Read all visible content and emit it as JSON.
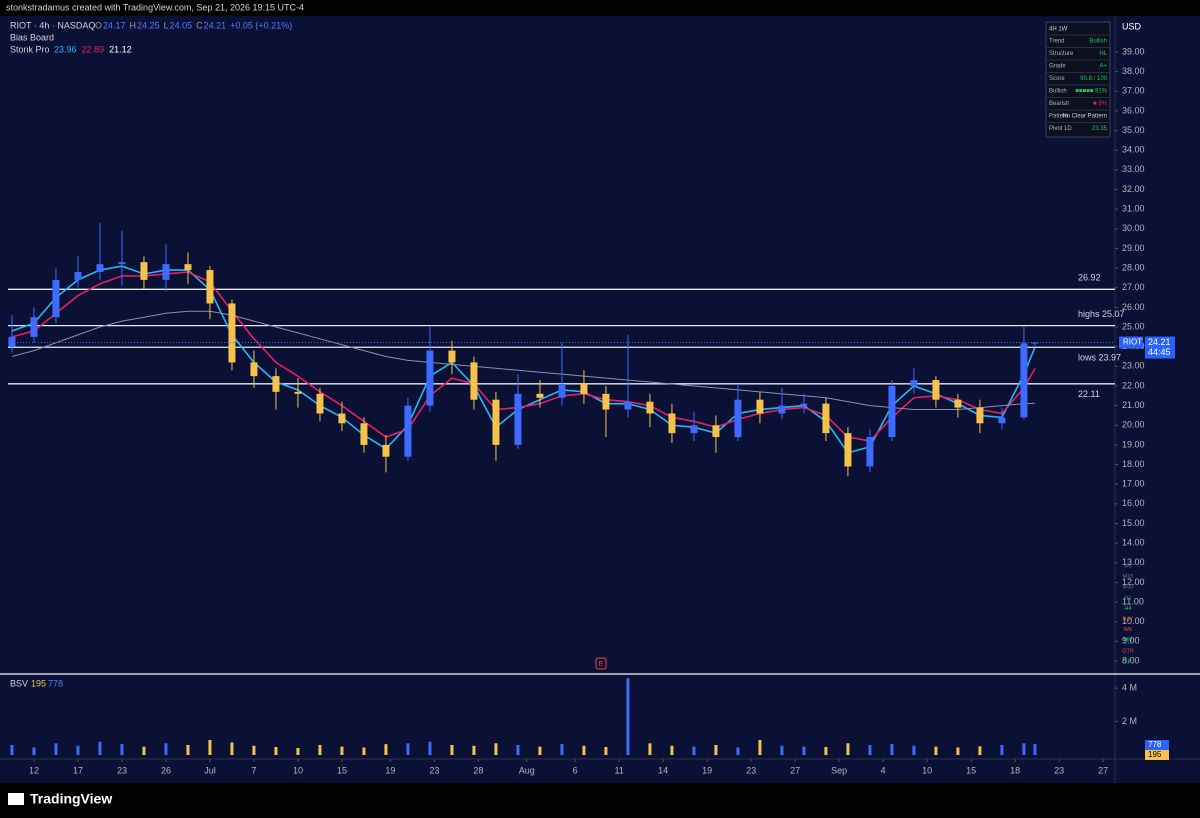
{
  "header": {
    "credit": "stonkstradamus created with TradingView.com, Sep 21, 2026 19:15 UTC-4",
    "symbol_line": "RIOT · 4h · NASDAQ",
    "ohlc_labels": [
      "O",
      "H",
      "L",
      "C"
    ],
    "change_label": "+0.05 (+0.21%)",
    "indicator_1": "Bias Board",
    "indicator_2": "Stonk Pro",
    "currency": "USD"
  },
  "bias_board": {
    "header": "4H  1W",
    "rows": [
      [
        "Trend",
        "Bullish"
      ],
      [
        "Structure",
        "HL"
      ],
      [
        "Grade",
        "A+"
      ],
      [
        "Score",
        "90.8 / 100"
      ],
      [
        "Bullish",
        "■■■■■ 91%"
      ],
      [
        "Bearish",
        "■ 9%"
      ],
      [
        "Pattern",
        "No Clear Pattern"
      ],
      [
        "Pivot 1D",
        "23.35"
      ]
    ]
  },
  "timeframes": [
    {
      "label": "M5",
      "color": "#6b7280"
    },
    {
      "label": "M15",
      "color": "#6b7280"
    },
    {
      "label": "M30",
      "color": "#6b7280"
    },
    {
      "label": "H1",
      "color": "#6b7280"
    },
    {
      "label": "H4",
      "color": "#22c55e"
    },
    {
      "label": "DAY",
      "color": "#ef4444"
    },
    {
      "label": "WK",
      "color": "#ef4444"
    },
    {
      "label": "MN",
      "color": "#22c55e"
    },
    {
      "label": "QTR",
      "color": "#ef4444"
    },
    {
      "label": "YR",
      "color": "#22c55e"
    }
  ],
  "earnings_marker": "E",
  "footer": {
    "brand": "TradingView"
  },
  "chart_data": [
    {
      "type": "candlestick",
      "symbol": "RIOT",
      "countdown": "44:45",
      "up_color": "#3d6bff",
      "down_color": "#f5c24a",
      "x": [
        -0.5,
        0,
        0.5,
        1,
        1.5,
        2,
        2.5,
        3,
        3.5,
        4,
        4.5,
        5,
        5.5,
        6,
        6.5,
        7,
        7.5,
        8,
        8.5,
        9,
        9.5,
        10,
        10.5,
        11,
        11.5,
        12,
        12.5,
        13,
        13.5,
        14,
        14.5,
        15,
        15.5,
        16,
        16.5,
        17,
        17.5,
        18,
        18.5,
        19,
        19.5,
        20,
        20.5,
        21,
        21.5,
        22,
        22.5,
        22.75
      ],
      "open": [
        24.0,
        24.5,
        25.5,
        27.4,
        27.8,
        28.2,
        28.3,
        27.4,
        28.2,
        27.9,
        26.2,
        23.2,
        22.5,
        21.7,
        21.6,
        20.6,
        20.1,
        19.0,
        18.4,
        21.0,
        23.8,
        23.2,
        21.3,
        19.0,
        21.6,
        21.4,
        22.1,
        21.6,
        20.8,
        21.2,
        20.6,
        19.6,
        20.0,
        19.4,
        21.3,
        20.6,
        21.0,
        21.1,
        19.6,
        17.9,
        19.4,
        22.0,
        22.3,
        21.3,
        20.9,
        20.1,
        20.4,
        24.17
      ],
      "high": [
        25.6,
        26.0,
        28.0,
        28.6,
        30.3,
        29.9,
        28.6,
        29.2,
        28.8,
        28.1,
        26.4,
        23.8,
        22.9,
        22.4,
        21.9,
        21.2,
        20.4,
        19.5,
        21.4,
        25.0,
        24.3,
        23.5,
        21.7,
        22.6,
        22.3,
        24.2,
        22.8,
        22.0,
        24.6,
        21.6,
        21.1,
        20.7,
        20.5,
        22.1,
        21.7,
        21.9,
        21.6,
        21.4,
        19.9,
        19.8,
        22.3,
        22.9,
        22.5,
        21.6,
        21.3,
        20.9,
        25.0,
        24.25
      ],
      "low": [
        23.7,
        24.2,
        25.2,
        27.0,
        27.4,
        27.1,
        26.9,
        26.8,
        27.2,
        25.4,
        22.8,
        21.9,
        20.8,
        20.9,
        20.2,
        19.7,
        18.6,
        17.6,
        18.2,
        20.7,
        22.6,
        20.8,
        18.2,
        18.8,
        20.9,
        21.0,
        21.1,
        19.4,
        20.4,
        19.9,
        19.1,
        19.2,
        18.6,
        19.2,
        20.1,
        20.3,
        20.6,
        19.2,
        17.4,
        17.6,
        19.2,
        21.6,
        20.9,
        20.4,
        19.6,
        19.8,
        20.3,
        24.05
      ],
      "close": [
        24.5,
        25.5,
        27.4,
        27.8,
        28.2,
        28.3,
        27.4,
        28.2,
        27.9,
        26.2,
        23.2,
        22.5,
        21.7,
        21.6,
        20.6,
        20.1,
        19.0,
        18.4,
        21.0,
        23.8,
        23.2,
        21.3,
        19.0,
        21.6,
        21.4,
        22.1,
        21.6,
        20.8,
        21.2,
        20.6,
        19.6,
        20.0,
        19.4,
        21.3,
        20.6,
        21.0,
        21.1,
        19.6,
        17.9,
        19.4,
        22.0,
        22.3,
        21.3,
        20.9,
        20.1,
        20.4,
        24.17,
        24.21
      ],
      "series": [
        {
          "color": "#29b6f6",
          "values": [
            24.8,
            25.2,
            26.5,
            27.4,
            27.9,
            28.1,
            27.7,
            27.9,
            27.9,
            26.9,
            24.6,
            23.2,
            22.2,
            21.8,
            21.0,
            20.4,
            19.5,
            18.8,
            20.0,
            22.5,
            23.2,
            22.0,
            19.9,
            20.8,
            21.3,
            21.8,
            21.7,
            21.1,
            21.1,
            20.8,
            20.0,
            19.9,
            19.6,
            20.6,
            20.8,
            20.9,
            21.0,
            20.2,
            18.6,
            18.9,
            21.0,
            22.0,
            21.6,
            21.1,
            20.5,
            20.4,
            22.6,
            23.96
          ]
        },
        {
          "color": "#e91e63",
          "values": [
            24.5,
            24.8,
            25.7,
            26.6,
            27.2,
            27.6,
            27.6,
            27.7,
            27.8,
            27.3,
            25.8,
            24.4,
            23.2,
            22.5,
            21.7,
            21.0,
            20.2,
            19.4,
            19.8,
            21.5,
            22.4,
            22.1,
            20.8,
            20.9,
            21.1,
            21.5,
            21.6,
            21.3,
            21.2,
            21.0,
            20.4,
            20.2,
            19.9,
            20.3,
            20.6,
            20.8,
            20.9,
            20.5,
            19.4,
            19.2,
            20.4,
            21.4,
            21.5,
            21.3,
            20.8,
            20.6,
            21.9,
            22.89
          ]
        },
        {
          "color": "#8a8fa8",
          "values": [
            23.5,
            23.8,
            24.2,
            24.6,
            25.0,
            25.3,
            25.5,
            25.7,
            25.8,
            25.8,
            25.6,
            25.3,
            25.0,
            24.7,
            24.4,
            24.1,
            23.8,
            23.5,
            23.3,
            23.2,
            23.1,
            23.0,
            22.9,
            22.8,
            22.7,
            22.6,
            22.5,
            22.4,
            22.3,
            22.2,
            22.1,
            22.0,
            21.9,
            21.8,
            21.7,
            21.6,
            21.5,
            21.4,
            21.2,
            21.0,
            20.9,
            20.8,
            20.8,
            20.8,
            20.9,
            21.0,
            21.1,
            21.12
          ]
        }
      ],
      "levels": [
        {
          "value": 26.92,
          "label": "26.92"
        },
        {
          "value": 25.07,
          "label": "highs  25.07"
        },
        {
          "value": 23.97,
          "label": "lows  23.97"
        },
        {
          "value": 22.11,
          "label": "22.11"
        }
      ],
      "xlim": [
        -0.59,
        24.57
      ],
      "xticks": [
        {
          "value": 0,
          "label": "12"
        },
        {
          "value": 1,
          "label": "17"
        },
        {
          "value": 2,
          "label": "23"
        },
        {
          "value": 3,
          "label": "26"
        },
        {
          "value": 4,
          "label": "Jul"
        },
        {
          "value": 5,
          "label": "7"
        },
        {
          "value": 6,
          "label": "10"
        },
        {
          "value": 7,
          "label": "15"
        },
        {
          "value": 8.1,
          "label": "19"
        },
        {
          "value": 9.1,
          "label": "23"
        },
        {
          "value": 10.1,
          "label": "28"
        },
        {
          "value": 11.2,
          "label": "Aug"
        },
        {
          "value": 12.3,
          "label": "6"
        },
        {
          "value": 13.3,
          "label": "11"
        },
        {
          "value": 14.3,
          "label": "14"
        },
        {
          "value": 15.3,
          "label": "19"
        },
        {
          "value": 16.3,
          "label": "23"
        },
        {
          "value": 17.3,
          "label": "27"
        },
        {
          "value": 18.3,
          "label": "Sep"
        },
        {
          "value": 19.3,
          "label": "4"
        },
        {
          "value": 20.3,
          "label": "10"
        },
        {
          "value": 21.3,
          "label": "15"
        },
        {
          "value": 22.3,
          "label": "18"
        },
        {
          "value": 23.3,
          "label": "23"
        },
        {
          "value": 24.3,
          "label": "27"
        }
      ],
      "ylim": [
        7.44,
        40.73
      ],
      "yticks": [
        {
          "value": 8,
          "label": "8.00"
        },
        {
          "value": 9,
          "label": "9.00"
        },
        {
          "value": 10,
          "label": "10.00"
        },
        {
          "value": 11,
          "label": "11.00"
        },
        {
          "value": 12,
          "label": "12.00"
        },
        {
          "value": 13,
          "label": "13.00"
        },
        {
          "value": 14,
          "label": "14.00"
        },
        {
          "value": 15,
          "label": "15.00"
        },
        {
          "value": 16,
          "label": "16.00"
        },
        {
          "value": 17,
          "label": "17.00"
        },
        {
          "value": 18,
          "label": "18.00"
        },
        {
          "value": 19,
          "label": "19.00"
        },
        {
          "value": 20,
          "label": "20.00"
        },
        {
          "value": 21,
          "label": "21.00"
        },
        {
          "value": 22,
          "label": "22.00"
        },
        {
          "value": 23,
          "label": "23.00"
        },
        {
          "value": 24,
          "label": "24.00"
        },
        {
          "value": 25,
          "label": "25.00"
        },
        {
          "value": 26,
          "label": "26.00"
        },
        {
          "value": 27,
          "label": "27.00"
        },
        {
          "value": 28,
          "label": "28.00"
        },
        {
          "value": 29,
          "label": "29.00"
        },
        {
          "value": 30,
          "label": "30.00"
        },
        {
          "value": 31,
          "label": "31.00"
        },
        {
          "value": 32,
          "label": "32.00"
        },
        {
          "value": 33,
          "label": "33.00"
        },
        {
          "value": 34,
          "label": "34.00"
        },
        {
          "value": 35,
          "label": "35.00"
        },
        {
          "value": 36,
          "label": "36.00"
        },
        {
          "value": 37,
          "label": "37.00"
        },
        {
          "value": 38,
          "label": "38.00"
        },
        {
          "value": 39,
          "label": "39.00"
        }
      ],
      "grid": false
    },
    {
      "type": "bar",
      "legend_label": "BSV",
      "legend_values": [
        195,
        778
      ],
      "x": [
        -0.5,
        0,
        0.5,
        1,
        1.5,
        2,
        2.5,
        3,
        3.5,
        4,
        4.5,
        5,
        5.5,
        6,
        6.5,
        7,
        7.5,
        8,
        8.5,
        9,
        9.5,
        10,
        10.5,
        11,
        11.5,
        12,
        12.5,
        13,
        13.5,
        14,
        14.5,
        15,
        15.5,
        16,
        16.5,
        17,
        17.5,
        18,
        18.5,
        19,
        19.5,
        20,
        20.5,
        21,
        21.5,
        22,
        22.5,
        22.75
      ],
      "values": [
        600000,
        450000,
        700000,
        550000,
        800000,
        650000,
        500000,
        700000,
        600000,
        900000,
        750000,
        550000,
        480000,
        420000,
        600000,
        500000,
        450000,
        650000,
        700000,
        800000,
        600000,
        550000,
        700000,
        600000,
        500000,
        650000,
        550000,
        480000,
        4600000,
        700000,
        550000,
        500000,
        600000,
        450000,
        900000,
        550000,
        500000,
        480000,
        700000,
        600000,
        650000,
        550000,
        500000,
        450000,
        520000,
        600000,
        700000,
        650000
      ],
      "ylim": [
        0,
        4730000
      ],
      "yticks": [
        {
          "value": 2000000,
          "label": "2 M"
        },
        {
          "value": 4000000,
          "label": "4 M"
        }
      ]
    }
  ]
}
